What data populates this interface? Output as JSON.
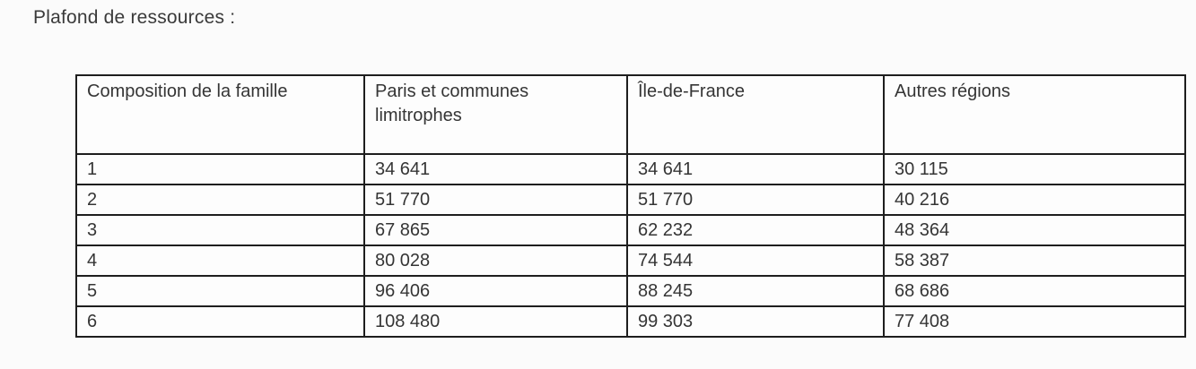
{
  "title": "Plafond de ressources :",
  "table": {
    "headers": [
      "Composition de la famille",
      "Paris et communes limitrophes",
      "Île-de-France",
      "Autres régions"
    ],
    "rows": [
      [
        "1",
        "34 641",
        "34 641",
        "30 115"
      ],
      [
        "2",
        "51 770",
        "51 770",
        "40 216"
      ],
      [
        "3",
        "67 865",
        "62 232",
        "48 364"
      ],
      [
        "4",
        "80 028",
        "74 544",
        "58 387"
      ],
      [
        "5",
        "96 406",
        "88 245",
        "68 686"
      ],
      [
        "6",
        "108 480",
        "99 303",
        "77 408"
      ]
    ]
  },
  "colors": {
    "text": "#383838",
    "border": "#1e1e1e",
    "background": "#fbfbfb"
  }
}
